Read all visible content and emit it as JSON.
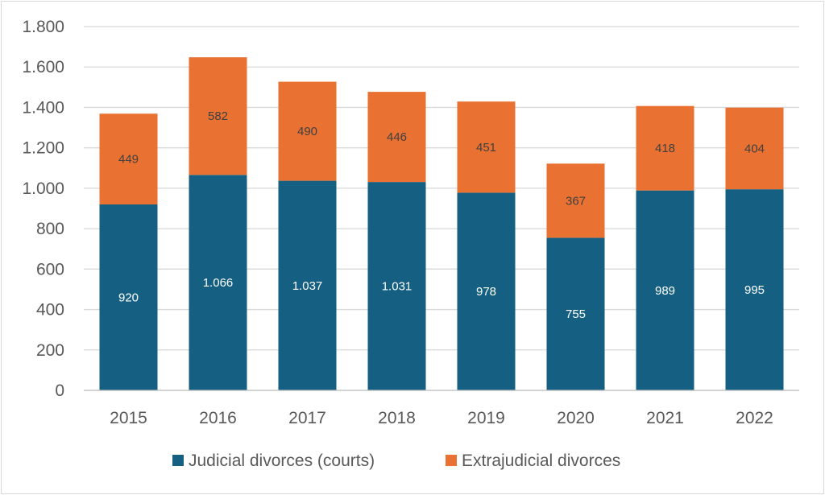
{
  "chart_data": {
    "type": "bar",
    "stacked": true,
    "title": "",
    "xlabel": "",
    "ylabel": "",
    "categories": [
      "2015",
      "2016",
      "2017",
      "2018",
      "2019",
      "2020",
      "2021",
      "2022"
    ],
    "series": [
      {
        "name": "Judicial divorces (courts)",
        "color": "#156082",
        "label_color": "#ffffff",
        "values": [
          920,
          1066,
          1037,
          1031,
          978,
          755,
          989,
          995
        ],
        "labels": [
          "920",
          "1.066",
          "1.037",
          "1.031",
          "978",
          "755",
          "989",
          "995"
        ]
      },
      {
        "name": "Extrajudicial divorces",
        "color": "#e97132",
        "label_color": "#404040",
        "values": [
          449,
          582,
          490,
          446,
          451,
          367,
          418,
          404
        ],
        "labels": [
          "449",
          "582",
          "490",
          "446",
          "451",
          "367",
          "418",
          "404"
        ]
      }
    ],
    "ylim": [
      0,
      1800
    ],
    "yticks": [
      0,
      200,
      400,
      600,
      800,
      1000,
      1200,
      1400,
      1600,
      1800
    ],
    "ytick_labels": [
      "0",
      "200",
      "400",
      "600",
      "800",
      "1.000",
      "1.200",
      "1.400",
      "1.600",
      "1.800"
    ],
    "grid": true,
    "legend": "bottom",
    "gridline_color": "#d9d9d9"
  }
}
